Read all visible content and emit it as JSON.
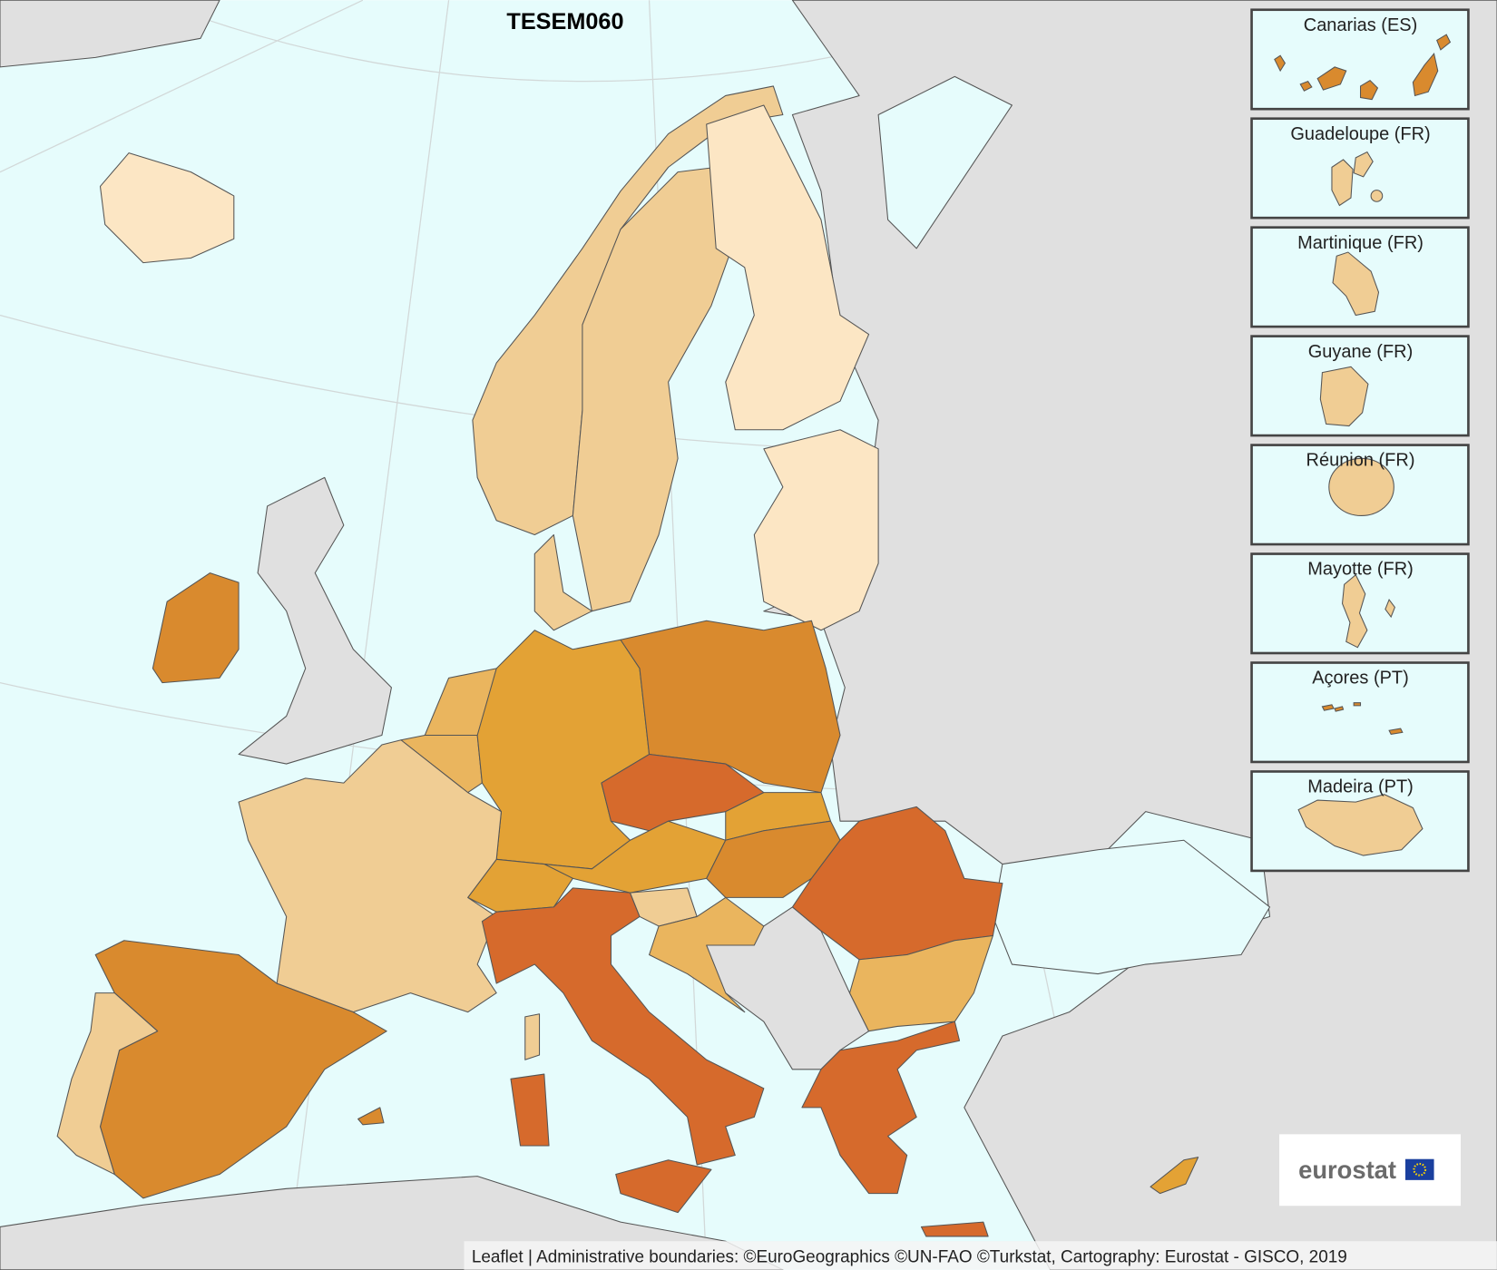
{
  "title": "TESEM060",
  "insets": [
    {
      "label": "Canarias (ES)"
    },
    {
      "label": "Guadeloupe (FR)"
    },
    {
      "label": "Martinique (FR)"
    },
    {
      "label": "Guyane (FR)"
    },
    {
      "label": "Réunion (FR)"
    },
    {
      "label": "Mayotte (FR)"
    },
    {
      "label": "Açores (PT)"
    },
    {
      "label": "Madeira (PT)"
    }
  ],
  "logo": "eurostat",
  "attribution": "Leaflet | Administrative boundaries: ©EuroGeographics ©UN-FAO ©Turkstat, Cartography: Eurostat - GISCO, 2019"
}
